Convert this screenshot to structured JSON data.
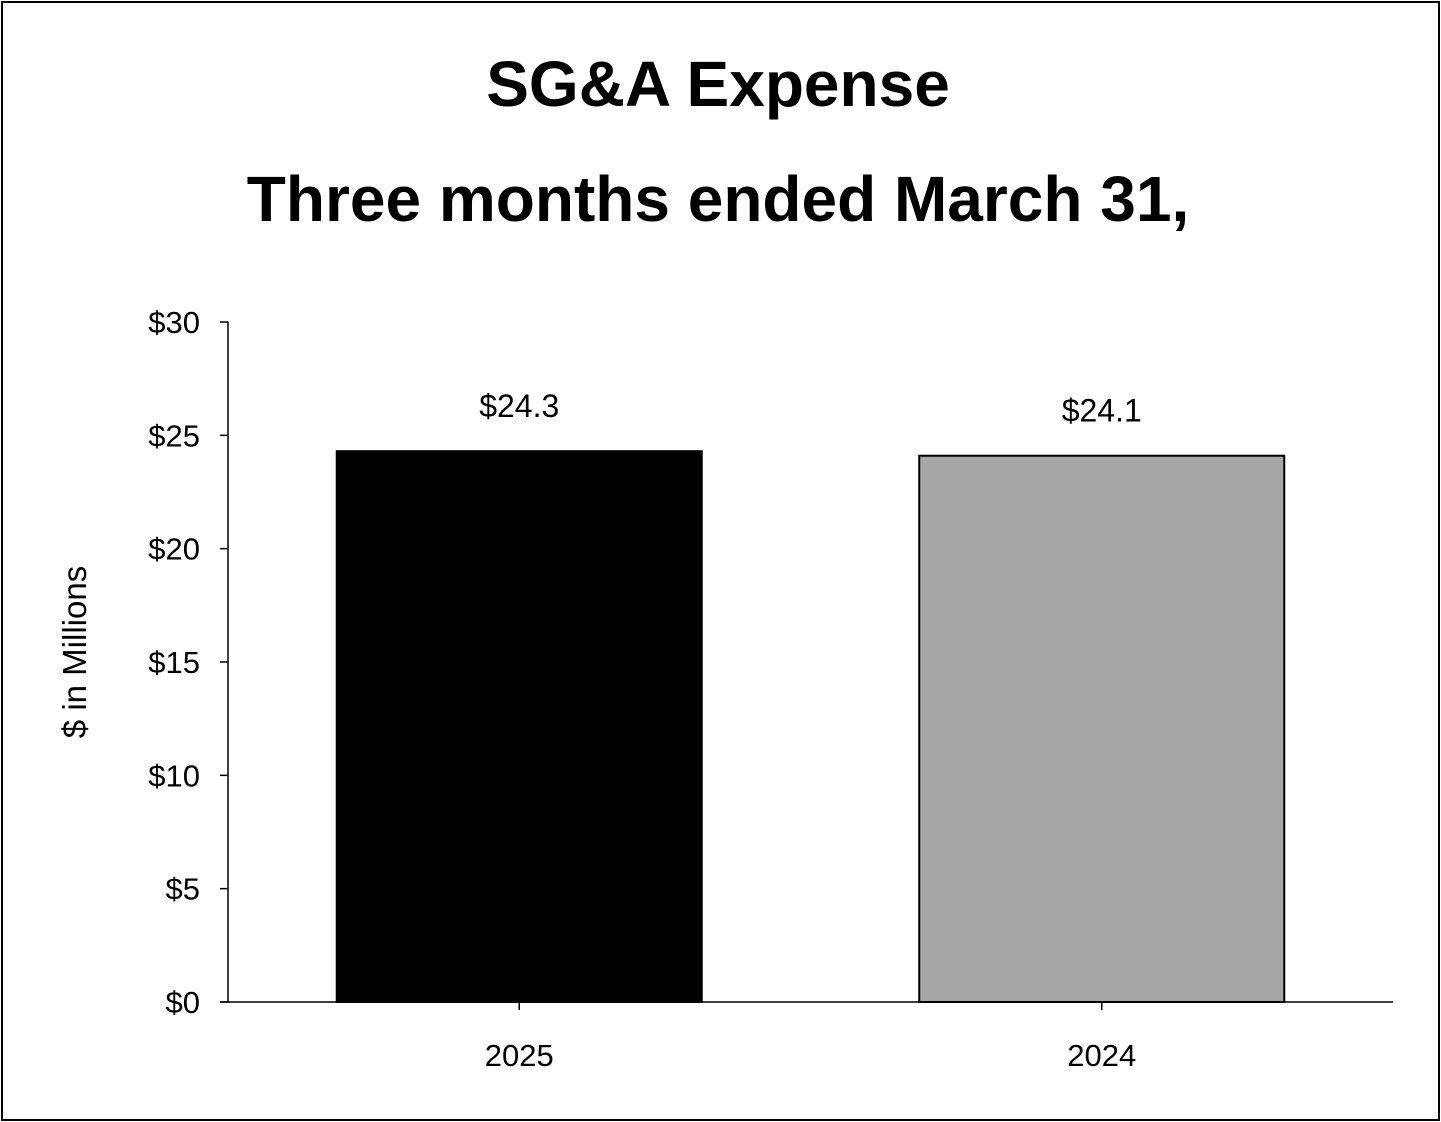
{
  "chart_data": {
    "type": "bar",
    "title": "SG&A Expense",
    "subtitle": "Three months ended March 31,",
    "xlabel": "",
    "ylabel": "$ in Millions",
    "categories": [
      "2025",
      "2024"
    ],
    "values": [
      24.3,
      24.1
    ],
    "data_labels": [
      "$24.3",
      "$24.1"
    ],
    "bar_colors": [
      "#000000",
      "#a6a6a6"
    ],
    "ylim": [
      0,
      30
    ],
    "yticks": [
      0,
      5,
      10,
      15,
      20,
      25,
      30
    ],
    "ytick_labels": [
      "$0",
      "$5",
      "$10",
      "$15",
      "$20",
      "$25",
      "$30"
    ],
    "grid": false,
    "legend": "none"
  }
}
